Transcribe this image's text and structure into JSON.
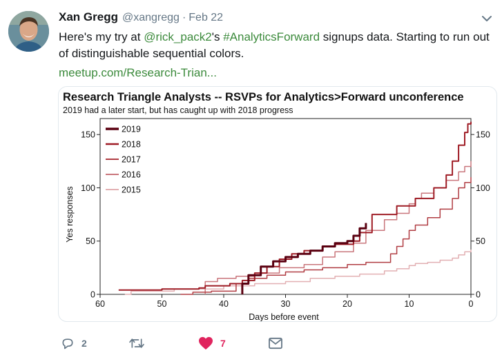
{
  "tweet": {
    "display_name": "Xan Gregg",
    "handle": "@xangregg",
    "separator": "·",
    "date": "Feb 22",
    "text_parts": {
      "p1": "Here's my try at ",
      "mention": "@rick_pack2",
      "p2": "'s ",
      "hashtag": "#AnalyticsForward",
      "p3": " signups data. Starting to run out of distinguishable sequential colors."
    },
    "url": "meetup.com/Research-Trian..."
  },
  "icons": {
    "avatar": "profile-photo",
    "caret": "chevron-down-icon",
    "reply": "reply-icon",
    "retweet": "retweet-icon",
    "like": "heart-icon",
    "dm": "envelope-icon"
  },
  "actions": {
    "reply_count": "2",
    "like_count": "7"
  },
  "colors": {
    "link": "#3b8a3b",
    "like": "#e0245e",
    "muted": "#657786"
  },
  "chart_data": {
    "type": "line",
    "title": "Research Triangle Analysts -- RSVPs for Analytics>Forward unconference",
    "subtitle": "2019 had a later start, but has caught up with 2018 progress",
    "xlabel": "Days before event",
    "ylabel": "Yes responses",
    "xlim": [
      60,
      0
    ],
    "ylim": [
      0,
      165
    ],
    "x_ticks": [
      60,
      50,
      40,
      30,
      20,
      10,
      0
    ],
    "y_ticks": [
      0,
      50,
      100,
      150
    ],
    "legend_position": "top-left",
    "series": [
      {
        "name": "2019",
        "color": "#5a0010",
        "width": 3,
        "points": [
          [
            37,
            0
          ],
          [
            37,
            10
          ],
          [
            36,
            18
          ],
          [
            34,
            26
          ],
          [
            32,
            31
          ],
          [
            30,
            35
          ],
          [
            28,
            38
          ],
          [
            26,
            41
          ],
          [
            24,
            45
          ],
          [
            22,
            48
          ],
          [
            20,
            50
          ],
          [
            19.5,
            50
          ],
          [
            19,
            55
          ],
          [
            18,
            62
          ],
          [
            17,
            67
          ]
        ]
      },
      {
        "name": "2018",
        "color": "#9e1b24",
        "width": 2,
        "points": [
          [
            57,
            4
          ],
          [
            50,
            5
          ],
          [
            44,
            6
          ],
          [
            43,
            8
          ],
          [
            39,
            10
          ],
          [
            37,
            13
          ],
          [
            35,
            20
          ],
          [
            33,
            26
          ],
          [
            31,
            33
          ],
          [
            29,
            38
          ],
          [
            27,
            41
          ],
          [
            24,
            45
          ],
          [
            22,
            47
          ],
          [
            19,
            50
          ],
          [
            18,
            58
          ],
          [
            16,
            75
          ],
          [
            12,
            83
          ],
          [
            9,
            90
          ],
          [
            6,
            100
          ],
          [
            4,
            112
          ],
          [
            3,
            125
          ],
          [
            2,
            140
          ],
          [
            1,
            152
          ],
          [
            0.5,
            160
          ],
          [
            0,
            162
          ]
        ]
      },
      {
        "name": "2017",
        "color": "#b03c42",
        "width": 1.5,
        "points": [
          [
            47,
            0
          ],
          [
            45,
            2
          ],
          [
            42,
            3
          ],
          [
            38,
            10
          ],
          [
            36,
            15
          ],
          [
            33,
            18
          ],
          [
            30,
            21
          ],
          [
            27,
            23
          ],
          [
            24,
            25
          ],
          [
            20,
            28
          ],
          [
            17,
            30
          ],
          [
            13,
            38
          ],
          [
            12,
            45
          ],
          [
            11,
            52
          ],
          [
            10,
            60
          ],
          [
            9,
            65
          ],
          [
            7,
            72
          ],
          [
            5,
            80
          ],
          [
            3,
            90
          ],
          [
            2,
            100
          ],
          [
            1,
            105
          ],
          [
            0,
            110
          ]
        ]
      },
      {
        "name": "2016",
        "color": "#c9757b",
        "width": 1.5,
        "points": [
          [
            43,
            0
          ],
          [
            43,
            12
          ],
          [
            41,
            15
          ],
          [
            38,
            17
          ],
          [
            35,
            20
          ],
          [
            31,
            25
          ],
          [
            27,
            28
          ],
          [
            24,
            35
          ],
          [
            22,
            40
          ],
          [
            19,
            48
          ],
          [
            17,
            60
          ],
          [
            14,
            70
          ],
          [
            12,
            76
          ],
          [
            10,
            85
          ],
          [
            9,
            90
          ],
          [
            8,
            95
          ],
          [
            6,
            100
          ],
          [
            4,
            107
          ],
          [
            2,
            115
          ],
          [
            1,
            120
          ],
          [
            0,
            125
          ]
        ]
      },
      {
        "name": "2015",
        "color": "#e2afb2",
        "width": 1.5,
        "points": [
          [
            56,
            0
          ],
          [
            55,
            3
          ],
          [
            48,
            5
          ],
          [
            40,
            8
          ],
          [
            35,
            10
          ],
          [
            30,
            12
          ],
          [
            26,
            15
          ],
          [
            22,
            17
          ],
          [
            18,
            19
          ],
          [
            14,
            22
          ],
          [
            12,
            24
          ],
          [
            10,
            27
          ],
          [
            9,
            29
          ],
          [
            7,
            30
          ],
          [
            5,
            32
          ],
          [
            3,
            34
          ],
          [
            2,
            37
          ],
          [
            1,
            40
          ],
          [
            0,
            42
          ]
        ]
      }
    ]
  }
}
